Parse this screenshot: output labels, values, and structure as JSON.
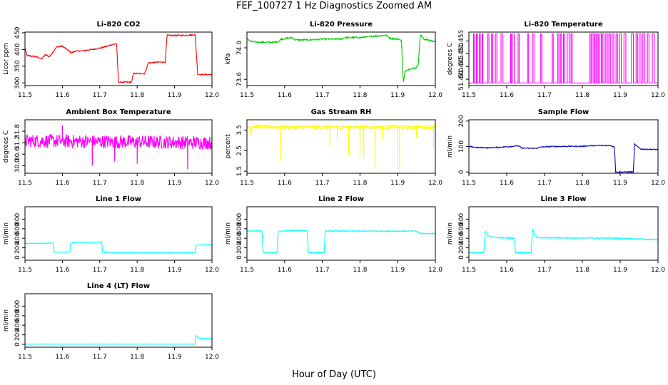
{
  "figure": {
    "title": "FEF_100727  1 Hz Diagnostics Zoomed AM",
    "xlabel": "Hour of Day (UTC)"
  },
  "chart_data": [
    {
      "id": "co2",
      "type": "line",
      "title": "Li-820 CO2",
      "ylabel": "Licor ppm",
      "color": "#ff0000",
      "xlim": [
        11.5,
        12.0
      ],
      "ylim": [
        292,
        452
      ],
      "xticks": [
        11.5,
        11.6,
        11.7,
        11.8,
        11.9,
        12.0
      ],
      "xtick_labels": [
        "11.5",
        "11.6",
        "11.7",
        "11.8",
        "11.9",
        "12.0"
      ],
      "yticks": [
        300,
        350,
        400,
        450
      ],
      "ytick_labels": [
        "300",
        "350",
        "400",
        "450"
      ],
      "noise": 2,
      "spikes": [],
      "points": [
        [
          11.5,
          405
        ],
        [
          11.505,
          382
        ],
        [
          11.53,
          378
        ],
        [
          11.545,
          372
        ],
        [
          11.555,
          385
        ],
        [
          11.565,
          378
        ],
        [
          11.575,
          392
        ],
        [
          11.585,
          408
        ],
        [
          11.6,
          410
        ],
        [
          11.61,
          402
        ],
        [
          11.625,
          390
        ],
        [
          11.635,
          395
        ],
        [
          11.65,
          395
        ],
        [
          11.665,
          398
        ],
        [
          11.68,
          400
        ],
        [
          11.705,
          405
        ],
        [
          11.72,
          410
        ],
        [
          11.745,
          418
        ],
        [
          11.75,
          302
        ],
        [
          11.77,
          302
        ],
        [
          11.785,
          302
        ],
        [
          11.79,
          328
        ],
        [
          11.82,
          328
        ],
        [
          11.83,
          360
        ],
        [
          11.86,
          362
        ],
        [
          11.875,
          362
        ],
        [
          11.88,
          442
        ],
        [
          11.92,
          442
        ],
        [
          11.955,
          444
        ],
        [
          11.962,
          325
        ],
        [
          12.0,
          325
        ]
      ]
    },
    {
      "id": "pressure",
      "type": "line",
      "title": "Li-820 Pressure",
      "ylabel": "kPa",
      "color": "#00cc00",
      "xlim": [
        11.5,
        12.0
      ],
      "ylim": [
        73.52,
        74.2
      ],
      "xticks": [
        11.5,
        11.6,
        11.7,
        11.8,
        11.9,
        12.0
      ],
      "xtick_labels": [
        "11.5",
        "11.6",
        "11.7",
        "11.8",
        "11.9",
        "12.0"
      ],
      "yticks": [
        73.6,
        74.0
      ],
      "ytick_labels": [
        "73.6",
        "74.0"
      ],
      "noise": 0.01,
      "spikes": [],
      "points": [
        [
          11.5,
          74.12
        ],
        [
          11.51,
          74.08
        ],
        [
          11.53,
          74.07
        ],
        [
          11.57,
          74.07
        ],
        [
          11.585,
          74.08
        ],
        [
          11.59,
          74.11
        ],
        [
          11.62,
          74.13
        ],
        [
          11.63,
          74.1
        ],
        [
          11.66,
          74.1
        ],
        [
          11.7,
          74.11
        ],
        [
          11.72,
          74.11
        ],
        [
          11.75,
          74.11
        ],
        [
          11.76,
          74.13
        ],
        [
          11.8,
          74.13
        ],
        [
          11.82,
          74.14
        ],
        [
          11.84,
          74.15
        ],
        [
          11.87,
          74.16
        ],
        [
          11.88,
          74.12
        ],
        [
          11.9,
          74.11
        ],
        [
          11.91,
          74.1
        ],
        [
          11.915,
          73.55
        ],
        [
          11.92,
          73.7
        ],
        [
          11.925,
          73.72
        ],
        [
          11.95,
          73.75
        ],
        [
          11.955,
          73.8
        ],
        [
          11.96,
          74.17
        ],
        [
          11.97,
          74.11
        ],
        [
          12.0,
          74.08
        ]
      ]
    },
    {
      "id": "temperature",
      "type": "line",
      "title": "Li-820 Temperature",
      "ylabel": "degrees C",
      "color": "#ff00ff",
      "xlim": [
        11.5,
        12.0
      ],
      "ylim": [
        51.4375,
        51.4585
      ],
      "xticks": [
        11.5,
        11.6,
        11.7,
        11.8,
        11.9,
        12.0
      ],
      "xtick_labels": [
        "11.5",
        "11.6",
        "11.7",
        "11.8",
        "11.9",
        "12.0"
      ],
      "yticks": [
        51.44,
        51.445,
        51.45,
        51.455
      ],
      "ytick_labels": [
        "51.440",
        "51.445",
        "51.450",
        "51.455"
      ],
      "levels": [
        51.4385,
        51.4578
      ],
      "toggles": [
        11.512,
        11.514,
        11.52,
        11.523,
        11.528,
        11.53,
        11.535,
        11.537,
        11.55,
        11.553,
        11.56,
        11.563,
        11.57,
        11.574,
        11.585,
        11.59,
        11.61,
        11.612,
        11.615,
        11.62,
        11.63,
        11.633,
        11.655,
        11.658,
        11.668,
        11.672,
        11.69,
        11.693,
        11.72,
        11.723,
        11.735,
        11.738,
        11.742,
        11.745,
        11.75,
        11.753,
        11.76,
        11.765,
        11.77,
        11.773,
        11.82,
        11.823,
        11.826,
        11.83,
        11.833,
        11.836,
        11.839,
        11.842,
        11.846,
        11.85,
        11.853,
        11.857,
        11.862,
        11.866,
        11.87,
        11.874,
        11.879,
        11.883,
        11.889,
        11.893,
        11.899,
        11.903,
        11.91,
        11.915,
        11.93,
        11.935,
        11.942,
        11.946,
        11.95,
        11.955,
        11.96,
        11.965,
        11.972,
        11.976,
        11.985,
        11.99
      ]
    },
    {
      "id": "ambient",
      "type": "line",
      "title": "Ambient Box Temperature",
      "ylabel": "degrees C",
      "color": "#ff00ff",
      "xlim": [
        11.5,
        12.0
      ],
      "ylim": [
        29.6,
        32.4
      ],
      "xticks": [
        11.5,
        11.6,
        11.7,
        11.8,
        11.9,
        12.0
      ],
      "xtick_labels": [
        "11.5",
        "11.6",
        "11.7",
        "11.8",
        "11.9",
        "12.0"
      ],
      "yticks": [
        30.0,
        30.6,
        31.2,
        31.8
      ],
      "ytick_labels": [
        "30.0",
        "30.6",
        "31.2",
        "31.8"
      ],
      "noise": 0.35,
      "spikes": [
        [
          11.68,
          30.0
        ],
        [
          11.74,
          30.2
        ],
        [
          11.8,
          30.1
        ],
        [
          11.935,
          29.8
        ],
        [
          11.6,
          32.1
        ]
      ],
      "points": [
        [
          11.5,
          31.3
        ],
        [
          12.0,
          31.2
        ]
      ]
    },
    {
      "id": "rh",
      "type": "line",
      "title": "Gas Stream RH",
      "ylabel": "percent",
      "color": "#ffff00",
      "xlim": [
        11.5,
        12.0
      ],
      "ylim": [
        1.4,
        4.0
      ],
      "xticks": [
        11.5,
        11.6,
        11.7,
        11.8,
        11.9,
        12.0
      ],
      "xtick_labels": [
        "11.5",
        "11.6",
        "11.7",
        "11.8",
        "11.9",
        "12.0"
      ],
      "yticks": [
        1.5,
        2.5,
        3.5
      ],
      "ytick_labels": [
        "1.5",
        "2.5",
        "3.5"
      ],
      "noise": 0.1,
      "spikes": [
        [
          11.51,
          3.2
        ],
        [
          11.59,
          2.0
        ],
        [
          11.72,
          2.7
        ],
        [
          11.74,
          3.0
        ],
        [
          11.77,
          2.3
        ],
        [
          11.8,
          2.2
        ],
        [
          11.81,
          2.1
        ],
        [
          11.84,
          1.6
        ],
        [
          11.86,
          3.0
        ],
        [
          11.9,
          1.5
        ],
        [
          11.905,
          1.5
        ],
        [
          11.95,
          3.1
        ],
        [
          11.995,
          2.6
        ]
      ],
      "points": [
        [
          11.5,
          3.65
        ],
        [
          12.0,
          3.65
        ]
      ]
    },
    {
      "id": "sample_flow",
      "type": "line",
      "title": "Sample Flow",
      "ylabel": "ml/min",
      "color": "#0000cc",
      "xlim": [
        11.5,
        12.0
      ],
      "ylim": [
        -5,
        205
      ],
      "xticks": [
        11.5,
        11.6,
        11.7,
        11.8,
        11.9,
        12.0
      ],
      "xtick_labels": [
        "11.5",
        "11.6",
        "11.7",
        "11.8",
        "11.9",
        "12.0"
      ],
      "yticks": [
        0,
        100,
        200
      ],
      "ytick_labels": [
        "0",
        "100",
        "200"
      ],
      "noise": 2,
      "spikes": [],
      "points": [
        [
          11.5,
          100
        ],
        [
          11.52,
          96
        ],
        [
          11.55,
          95
        ],
        [
          11.58,
          97
        ],
        [
          11.61,
          100
        ],
        [
          11.63,
          103
        ],
        [
          11.64,
          94
        ],
        [
          11.66,
          93
        ],
        [
          11.68,
          93
        ],
        [
          11.69,
          98
        ],
        [
          11.72,
          100
        ],
        [
          11.8,
          101
        ],
        [
          11.82,
          103
        ],
        [
          11.86,
          104
        ],
        [
          11.875,
          104
        ],
        [
          11.88,
          100
        ],
        [
          11.885,
          100
        ],
        [
          11.888,
          0
        ],
        [
          11.93,
          0
        ],
        [
          11.935,
          0
        ],
        [
          11.938,
          110
        ],
        [
          11.945,
          100
        ],
        [
          11.955,
          90
        ],
        [
          12.0,
          88
        ]
      ]
    },
    {
      "id": "line1",
      "type": "line",
      "title": "Line 1 Flow",
      "ylabel": "ml/min",
      "color": "#00ffff",
      "xlim": [
        11.5,
        12.0
      ],
      "ylim": [
        -60,
        1060
      ],
      "xticks": [
        11.5,
        11.6,
        11.7,
        11.8,
        11.9,
        12.0
      ],
      "xtick_labels": [
        "11.5",
        "11.6",
        "11.7",
        "11.8",
        "11.9",
        "12.0"
      ],
      "yticks": [
        0,
        200,
        400,
        600,
        800
      ],
      "ytick_labels": [
        "0",
        "200",
        "400",
        "600",
        "800"
      ],
      "noise": 6,
      "spikes": [],
      "points": [
        [
          11.5,
          290
        ],
        [
          11.57,
          300
        ],
        [
          11.575,
          300
        ],
        [
          11.578,
          110
        ],
        [
          11.62,
          110
        ],
        [
          11.623,
          310
        ],
        [
          11.7,
          320
        ],
        [
          11.705,
          320
        ],
        [
          11.708,
          100
        ],
        [
          11.8,
          100
        ],
        [
          11.95,
          100
        ],
        [
          11.955,
          100
        ],
        [
          11.958,
          260
        ],
        [
          12.0,
          265
        ]
      ]
    },
    {
      "id": "line2",
      "type": "line",
      "title": "Line 2 Flow",
      "ylabel": "ml/min",
      "color": "#00ffff",
      "xlim": [
        11.5,
        12.0
      ],
      "ylim": [
        -60,
        1060
      ],
      "xticks": [
        11.5,
        11.6,
        11.7,
        11.8,
        11.9,
        12.0
      ],
      "xtick_labels": [
        "11.5",
        "11.6",
        "11.7",
        "11.8",
        "11.9",
        "12.0"
      ],
      "yticks": [
        0,
        200,
        400,
        600,
        800
      ],
      "ytick_labels": [
        "0",
        "200",
        "400",
        "600",
        "800"
      ],
      "noise": 10,
      "spikes": [],
      "points": [
        [
          11.5,
          550
        ],
        [
          11.54,
          555
        ],
        [
          11.543,
          100
        ],
        [
          11.58,
          100
        ],
        [
          11.583,
          550
        ],
        [
          11.66,
          560
        ],
        [
          11.663,
          100
        ],
        [
          11.705,
          100
        ],
        [
          11.708,
          550
        ],
        [
          11.8,
          550
        ],
        [
          11.95,
          550
        ],
        [
          11.96,
          500
        ],
        [
          12.0,
          500
        ]
      ]
    },
    {
      "id": "line3",
      "type": "line",
      "title": "Line 3 Flow",
      "ylabel": "ml/min",
      "color": "#00ffff",
      "xlim": [
        11.5,
        12.0
      ],
      "ylim": [
        -60,
        1060
      ],
      "xticks": [
        11.5,
        11.6,
        11.7,
        11.8,
        11.9,
        12.0
      ],
      "xtick_labels": [
        "11.5",
        "11.6",
        "11.7",
        "11.8",
        "11.9",
        "12.0"
      ],
      "yticks": [
        0,
        200,
        400,
        600,
        800
      ],
      "ytick_labels": [
        "0",
        "200",
        "400",
        "600",
        "800"
      ],
      "noise": 12,
      "spikes": [],
      "points": [
        [
          11.5,
          100
        ],
        [
          11.54,
          100
        ],
        [
          11.543,
          560
        ],
        [
          11.55,
          450
        ],
        [
          11.57,
          420
        ],
        [
          11.58,
          410
        ],
        [
          11.62,
          400
        ],
        [
          11.623,
          100
        ],
        [
          11.665,
          100
        ],
        [
          11.668,
          590
        ],
        [
          11.675,
          470
        ],
        [
          11.68,
          420
        ],
        [
          11.7,
          410
        ],
        [
          11.8,
          405
        ],
        [
          11.9,
          400
        ],
        [
          12.0,
          370
        ]
      ]
    },
    {
      "id": "line4",
      "type": "line",
      "title": "Line 4 (LT) Flow",
      "ylabel": "ml/min",
      "color": "#00ffff",
      "xlim": [
        11.5,
        12.0
      ],
      "ylim": [
        -60,
        1060
      ],
      "xticks": [
        11.5,
        11.6,
        11.7,
        11.8,
        11.9,
        12.0
      ],
      "xtick_labels": [
        "11.5",
        "11.6",
        "11.7",
        "11.8",
        "11.9",
        "12.0"
      ],
      "yticks": [
        0,
        200,
        400,
        600,
        800
      ],
      "ytick_labels": [
        "0",
        "200",
        "400",
        "600",
        "800"
      ],
      "noise": 3,
      "spikes": [],
      "points": [
        [
          11.5,
          5
        ],
        [
          11.955,
          5
        ],
        [
          11.958,
          190
        ],
        [
          11.965,
          130
        ],
        [
          12.0,
          120
        ]
      ]
    }
  ]
}
